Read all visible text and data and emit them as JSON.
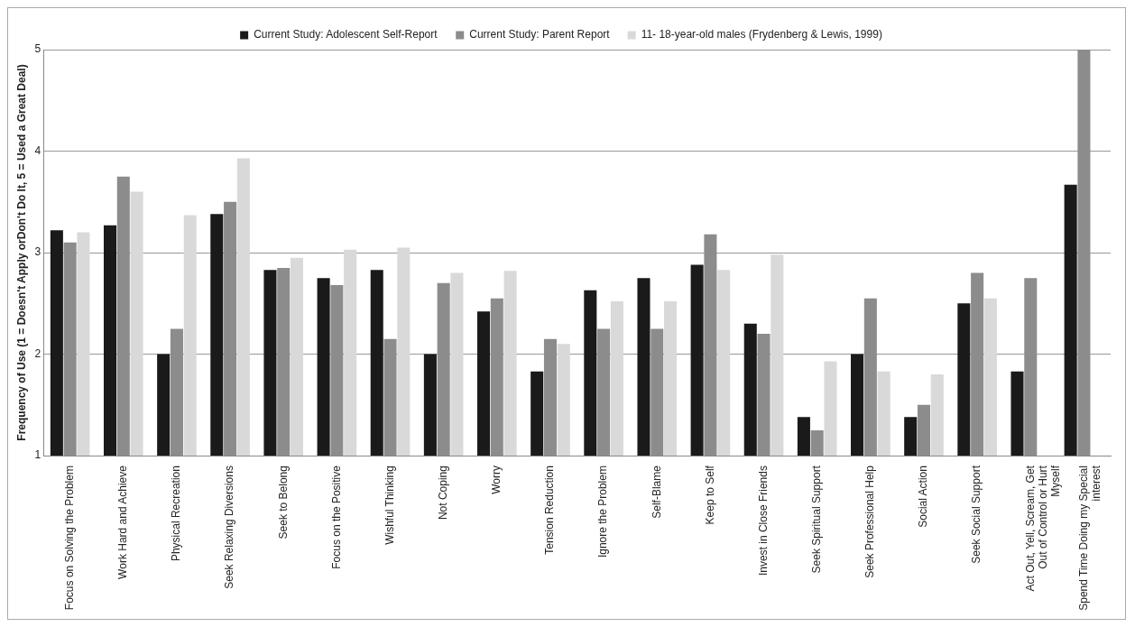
{
  "chart_data": {
    "type": "bar",
    "ylabel": "Frequency of Use (1 = Doesn't Apply orDon't Do It, 5 = Used a Great Deal)",
    "categories": [
      "Focus on Solving the Problem",
      "Work Hard and Achieve",
      "Physical Recreation",
      "Seek Relaxing Diversions",
      "Seek to Belong",
      "Focus on the Positive",
      "Wishful Thinking",
      "Not Coping",
      "Worry",
      "Tension Reduction",
      "Ignore the Problem",
      "Self-Blame",
      "Keep to Self",
      "Invest in Close Friends",
      "Seek Spiritual Support",
      "Seek Professional Help",
      "Social Action",
      "Seek Social Support",
      "Act Out, Yell, Scream, Get Out of Control or Hurt Myself",
      "Spend Time Doing my Special interest"
    ],
    "series": [
      {
        "name": "Current Study: Adolescent Self-Report",
        "color": "#1a1a1a",
        "values": [
          3.22,
          3.27,
          2.0,
          3.38,
          2.83,
          2.75,
          2.83,
          2.0,
          2.42,
          1.83,
          2.63,
          2.75,
          2.88,
          2.3,
          1.38,
          2.0,
          1.38,
          2.5,
          1.83,
          3.67
        ]
      },
      {
        "name": "Current Study: Parent Report",
        "color": "#8c8c8c",
        "values": [
          3.1,
          3.75,
          2.25,
          3.5,
          2.85,
          2.68,
          2.15,
          2.7,
          2.55,
          2.15,
          2.25,
          2.25,
          3.18,
          2.2,
          1.25,
          2.55,
          1.5,
          2.8,
          2.75,
          5.0
        ]
      },
      {
        "name": "11- 18-year-old males (Frydenberg & Lewis, 1999)",
        "color": "#d9d9d9",
        "values": [
          3.2,
          3.6,
          3.37,
          3.93,
          2.95,
          3.03,
          3.05,
          2.8,
          2.82,
          2.1,
          2.52,
          2.52,
          2.83,
          2.98,
          1.93,
          1.83,
          1.8,
          2.55,
          null,
          null
        ]
      }
    ],
    "ylim": [
      1,
      5
    ],
    "yticks": [
      1,
      2,
      3,
      4,
      5
    ],
    "grid": "y",
    "legend": "top"
  }
}
